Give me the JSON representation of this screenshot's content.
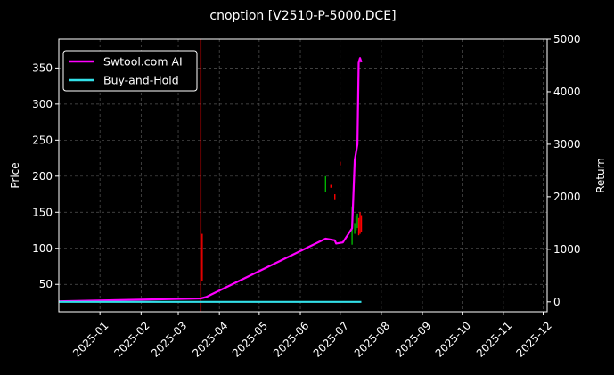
{
  "chart_data": {
    "type": "line",
    "title": "cnoption [V2510-P-5000.DCE]",
    "xlabel": "",
    "ylabel": "Price",
    "y2label": "Return",
    "x_ticks": [
      "2025-01",
      "2025-02",
      "2025-03",
      "2025-04",
      "2025-05",
      "2025-06",
      "2025-07",
      "2025-08",
      "2025-09",
      "2025-10",
      "2025-11",
      "2025-12"
    ],
    "xlim": [
      "2024-12-01",
      "2025-12-04"
    ],
    "ylim": [
      12,
      390
    ],
    "y_ticks": [
      50,
      100,
      150,
      200,
      250,
      300,
      350
    ],
    "y2lim": [
      -190,
      5000
    ],
    "y2_ticks": [
      0,
      1000,
      2000,
      3000,
      4000,
      5000
    ],
    "grid": true,
    "legend_position": "top-left",
    "colors": {
      "ai": "#ff00ff",
      "bh": "#33e0e8",
      "up": "#00b400",
      "down": "#ff0000"
    },
    "series": [
      {
        "name": "Swtool.com AI",
        "axis": "right",
        "color": "#ff00ff",
        "x": [
          "2024-12-01",
          "2025-03-18",
          "2025-03-22",
          "2025-03-26",
          "2025-06-20",
          "2025-06-27",
          "2025-06-28",
          "2025-07-03",
          "2025-07-10",
          "2025-07-12",
          "2025-07-14",
          "2025-07-15",
          "2025-07-16",
          "2025-07-17"
        ],
        "y": [
          10,
          65,
          90,
          140,
          1200,
          1170,
          1110,
          1130,
          1400,
          2700,
          3000,
          4550,
          4640,
          4560
        ]
      },
      {
        "name": "Buy-and-Hold",
        "axis": "right",
        "color": "#33e0e8",
        "x": [
          "2024-12-01",
          "2025-07-17"
        ],
        "y": [
          0,
          0
        ]
      }
    ],
    "markers": [
      {
        "x": "2025-03-18",
        "y_low": 12,
        "y_high": 390,
        "color": "#ff0000"
      },
      {
        "x": "2025-03-19",
        "y_low": 55,
        "y_high": 120,
        "color": "#ff0000"
      },
      {
        "x": "2025-06-20",
        "y_low": 178,
        "y_high": 200,
        "color": "#00b400"
      },
      {
        "x": "2025-06-24",
        "y_low": 184,
        "y_high": 188,
        "color": "#ff0000"
      },
      {
        "x": "2025-06-27",
        "y_low": 168,
        "y_high": 175,
        "color": "#ff0000"
      },
      {
        "x": "2025-07-01",
        "y_low": 215,
        "y_high": 220,
        "color": "#ff0000"
      },
      {
        "x": "2025-07-10",
        "y_low": 105,
        "y_high": 158,
        "color": "#00b400"
      },
      {
        "x": "2025-07-12",
        "y_low": 120,
        "y_high": 135,
        "color": "#00b400"
      },
      {
        "x": "2025-07-13",
        "y_low": 125,
        "y_high": 145,
        "color": "#00b400"
      },
      {
        "x": "2025-07-14",
        "y_low": 128,
        "y_high": 148,
        "color": "#00b400"
      },
      {
        "x": "2025-07-15",
        "y_low": 118,
        "y_high": 142,
        "color": "#ff0000"
      },
      {
        "x": "2025-07-16",
        "y_low": 120,
        "y_high": 150,
        "color": "#ff0000"
      },
      {
        "x": "2025-07-17",
        "y_low": 123,
        "y_high": 146,
        "color": "#ff0000"
      }
    ]
  }
}
